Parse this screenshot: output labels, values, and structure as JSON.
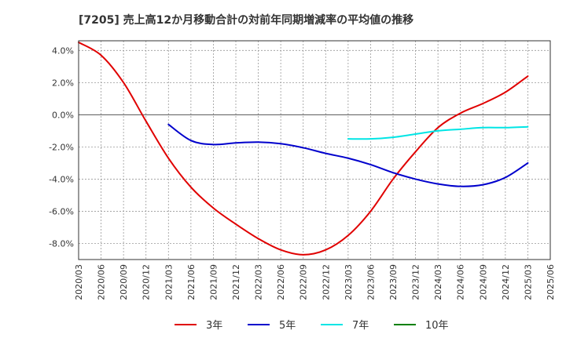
{
  "chart_data": {
    "type": "line",
    "title": "[7205]  売上高12か月移動合計の対前年同期増減率の平均値の推移",
    "xlabel": "",
    "ylabel": "",
    "ylim": [
      -9.0,
      4.6
    ],
    "y_ticks": [
      4.0,
      2.0,
      0.0,
      -2.0,
      -4.0,
      -6.0,
      -8.0
    ],
    "y_tick_labels": [
      "4.0%",
      "2.0%",
      "0.0%",
      "-2.0%",
      "-4.0%",
      "-6.0%",
      "-8.0%"
    ],
    "categories": [
      "2020/03",
      "2020/06",
      "2020/09",
      "2020/12",
      "2021/03",
      "2021/06",
      "2021/09",
      "2021/12",
      "2022/03",
      "2022/06",
      "2022/09",
      "2022/12",
      "2023/03",
      "2023/06",
      "2023/09",
      "2023/12",
      "2024/03",
      "2024/06",
      "2024/09",
      "2024/12",
      "2025/03",
      "2025/06"
    ],
    "grid": true,
    "legend_position": "bottom",
    "series": [
      {
        "name": "3年",
        "color": "#e00000",
        "values": [
          4.5,
          3.7,
          2.0,
          -0.4,
          -2.7,
          -4.5,
          -5.8,
          -6.8,
          -7.7,
          -8.4,
          -8.7,
          -8.4,
          -7.5,
          -6.0,
          -4.0,
          -2.3,
          -0.8,
          0.1,
          0.7,
          1.4,
          2.4,
          null
        ]
      },
      {
        "name": "5年",
        "color": "#0000cc",
        "values": [
          null,
          null,
          null,
          null,
          -0.6,
          -1.6,
          -1.85,
          -1.75,
          -1.7,
          -1.8,
          -2.05,
          -2.4,
          -2.7,
          -3.1,
          -3.6,
          -4.0,
          -4.3,
          -4.45,
          -4.35,
          -3.9,
          -3.0,
          null
        ]
      },
      {
        "name": "7年",
        "color": "#00e5e5",
        "values": [
          null,
          null,
          null,
          null,
          null,
          null,
          null,
          null,
          null,
          null,
          null,
          null,
          -1.5,
          -1.5,
          -1.4,
          -1.2,
          -1.0,
          -0.9,
          -0.8,
          -0.8,
          -0.75,
          null
        ]
      },
      {
        "name": "10年",
        "color": "#008000",
        "values": [
          null,
          null,
          null,
          null,
          null,
          null,
          null,
          null,
          null,
          null,
          null,
          null,
          null,
          null,
          null,
          null,
          null,
          null,
          null,
          null,
          null,
          null
        ]
      }
    ]
  }
}
